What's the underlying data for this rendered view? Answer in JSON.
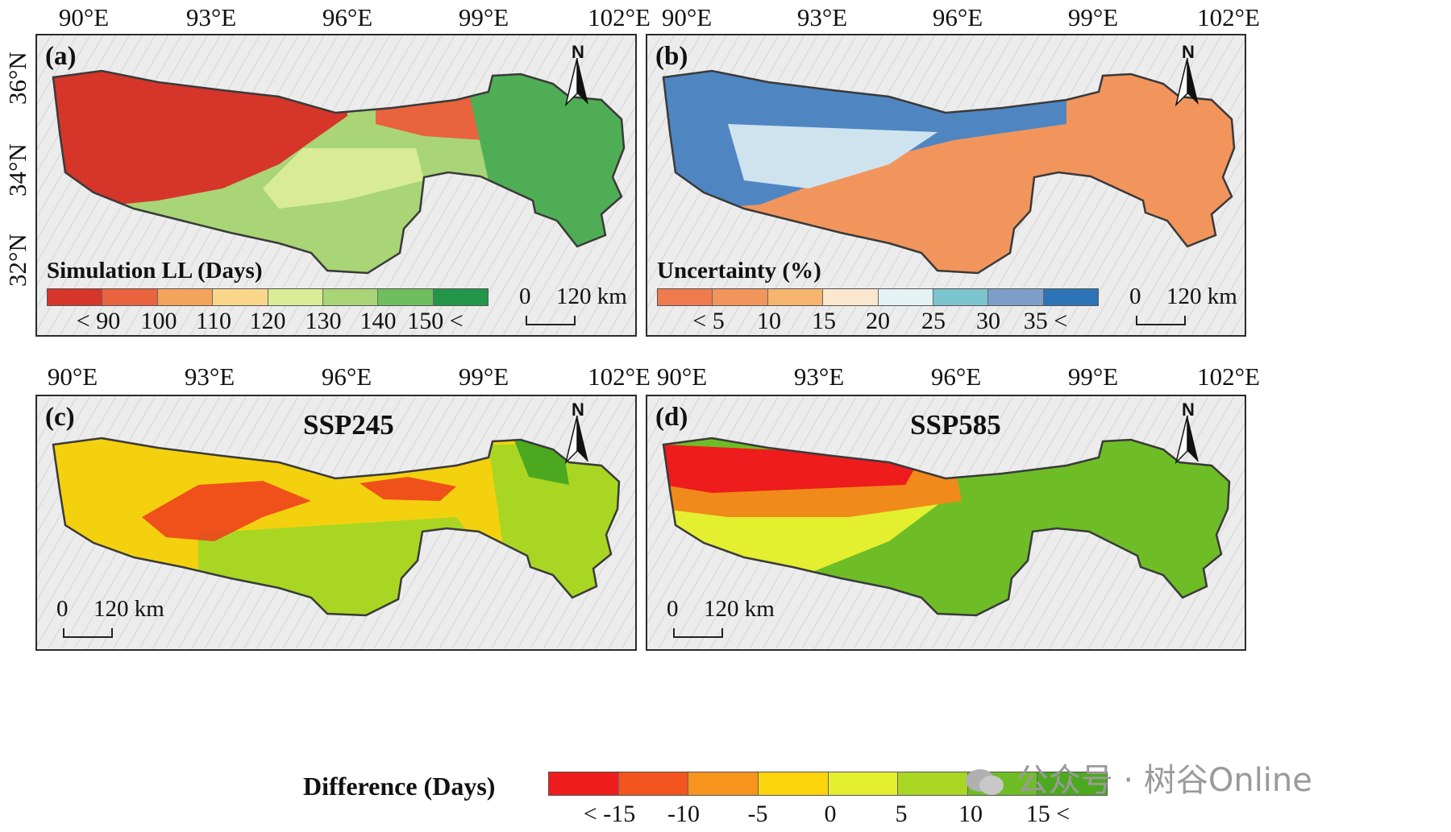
{
  "panels": {
    "a": {
      "label": "(a)",
      "legend_title": "Simulation LL (Days)",
      "legend_colors": [
        "#d6352a",
        "#e9633e",
        "#f3a45a",
        "#f9d68a",
        "#d9ec95",
        "#a9d576",
        "#6fbe5d",
        "#23964a"
      ],
      "legend_labels": [
        "< 90",
        "100",
        "110",
        "120",
        "130",
        "140",
        "150 <"
      ],
      "scale": {
        "zero": "0",
        "dist": "120 km"
      }
    },
    "b": {
      "label": "(b)",
      "legend_title": "Uncertainty (%)",
      "legend_colors": [
        "#ee7a4e",
        "#f2955c",
        "#f6b46e",
        "#fbe7cd",
        "#e3f2f4",
        "#7cc4ce",
        "#7d9fc7",
        "#2c74b6"
      ],
      "legend_labels": [
        "< 5",
        "10",
        "15",
        "20",
        "25",
        "30",
        "35 <"
      ],
      "scale": {
        "zero": "0",
        "dist": "120 km"
      }
    },
    "c": {
      "label": "(c)",
      "title": "SSP245",
      "scale": {
        "zero": "0",
        "dist": "120 km"
      }
    },
    "d": {
      "label": "(d)",
      "title": "SSP585",
      "scale": {
        "zero": "0",
        "dist": "120 km"
      }
    }
  },
  "axes": {
    "lon_ticks": [
      "90°E",
      "93°E",
      "96°E",
      "99°E",
      "102°E"
    ],
    "lat_ticks": [
      "36°N",
      "34°N",
      "32°N"
    ]
  },
  "north_label": "N",
  "difference_legend": {
    "title": "Difference (Days)",
    "colors": [
      "#ee1c1c",
      "#f2551d",
      "#f7941d",
      "#fbd40b",
      "#e3ef2f",
      "#a8d623",
      "#6ebd27",
      "#4ca91f"
    ],
    "labels": [
      "< -15",
      "-10",
      "-5",
      "0",
      "5",
      "10",
      "15 <"
    ]
  },
  "watermark": "公众号 · 树谷Online",
  "region_colors": {
    "a": [
      "#d6352a",
      "#a9d576",
      "#4fae55"
    ],
    "b": [
      "#4f86c2",
      "#f2955c",
      "#f5a46e"
    ],
    "c": [
      "#f4d10e",
      "#a8d623",
      "#ee3b1c"
    ],
    "d": [
      "#6ebd27",
      "#f08a1a",
      "#ee1c1c"
    ]
  }
}
